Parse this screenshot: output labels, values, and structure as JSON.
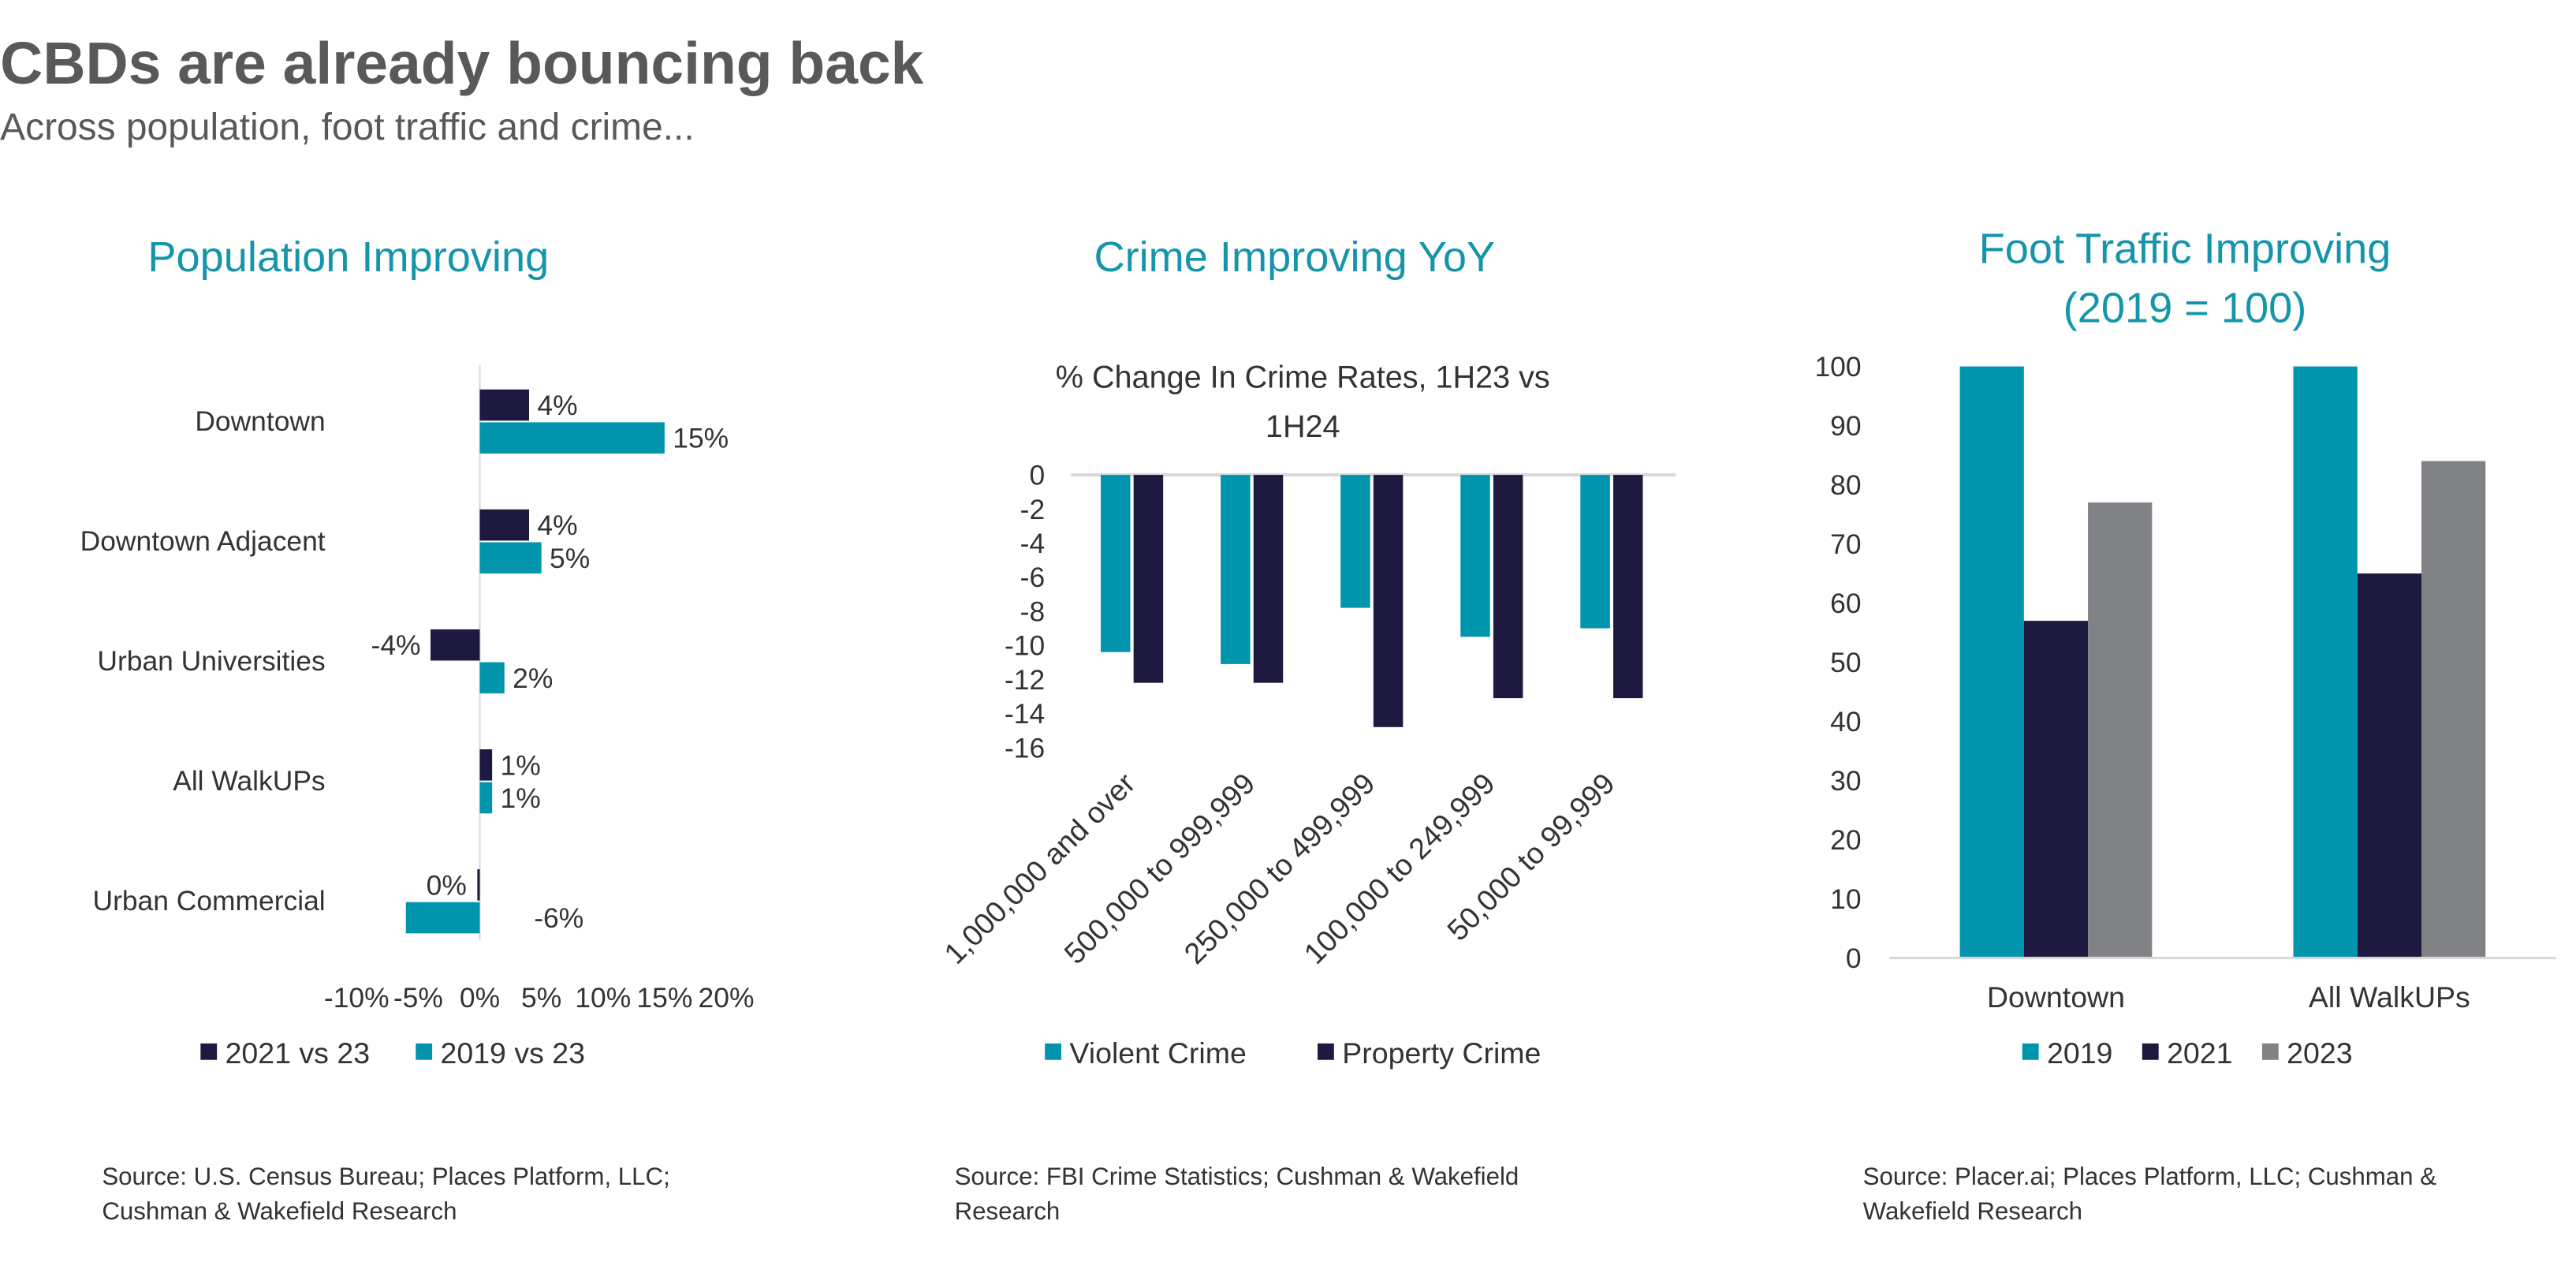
{
  "title": "CBDs are already bouncing back",
  "subtitle": "Across population, foot traffic and crime...",
  "colors": {
    "teal": "#0095AD",
    "navy": "#1E1A3F",
    "gray": "#808285",
    "title_teal": "#1595A9"
  },
  "chart_data": [
    {
      "type": "bar",
      "orientation": "horizontal",
      "title": "Population Improving",
      "categories": [
        "Downtown",
        "Downtown Adjacent",
        "Urban Universities",
        "All WalkUPs",
        "Urban Commercial"
      ],
      "series": [
        {
          "name": "2021 vs 23",
          "values": [
            4,
            4,
            -4,
            1,
            -0.2
          ],
          "labels": [
            "4%",
            "4%",
            "-4%",
            "1%",
            "0%"
          ],
          "color": "#1E1A3F"
        },
        {
          "name": "2019 vs 23",
          "values": [
            15,
            5,
            2,
            1,
            -6
          ],
          "labels": [
            "15%",
            "5%",
            "2%",
            "1%",
            "-6%"
          ],
          "color": "#0095AD"
        }
      ],
      "xticks": [
        "-10%",
        "-5%",
        "0%",
        "5%",
        "10%",
        "15%",
        "20%"
      ],
      "xlim": [
        -10,
        20
      ],
      "legend": "bottom",
      "source": [
        "Source: U.S. Census Bureau; Places Platform, LLC;",
        "Cushman & Wakefield Research"
      ]
    },
    {
      "type": "bar",
      "title": "Crime Improving YoY",
      "subtitle": [
        "% Change In Crime Rates, 1H23 vs",
        "1H24"
      ],
      "categories": [
        "1,000,000 and over",
        "500,000 to 999,999",
        "250,000 to 499,999",
        "100,000 to 249,999",
        "50,000 to 99,999"
      ],
      "series": [
        {
          "name": "Violent Crime",
          "values": [
            -10.4,
            -11.1,
            -7.8,
            -9.5,
            -9.0
          ],
          "color": "#0095AD"
        },
        {
          "name": "Property Crime",
          "values": [
            -12.2,
            -12.2,
            -14.8,
            -13.1,
            -13.1
          ],
          "color": "#1E1A3F"
        }
      ],
      "yticks": [
        "0",
        "-2",
        "-4",
        "-6",
        "-8",
        "-10",
        "-12",
        "-14",
        "-16"
      ],
      "ylim": [
        -16,
        0
      ],
      "legend": "bottom",
      "source": [
        "Source: FBI Crime Statistics; Cushman & Wakefield",
        "Research"
      ]
    },
    {
      "type": "bar",
      "title": [
        "Foot Traffic Improving",
        "(2019 = 100)"
      ],
      "categories": [
        "Downtown",
        "All WalkUPs"
      ],
      "series": [
        {
          "name": "2019",
          "values": [
            100,
            100
          ],
          "color": "#0095AD"
        },
        {
          "name": "2021",
          "values": [
            57,
            65
          ],
          "color": "#1E1A3F"
        },
        {
          "name": "2023",
          "values": [
            77,
            84
          ],
          "color": "#808285"
        }
      ],
      "yticks": [
        "0",
        "10",
        "20",
        "30",
        "40",
        "50",
        "60",
        "70",
        "80",
        "90",
        "100"
      ],
      "ylim": [
        0,
        100
      ],
      "legend": "bottom",
      "source": [
        "Source: Placer.ai; Places Platform, LLC; Cushman &",
        "Wakefield Research"
      ]
    }
  ]
}
